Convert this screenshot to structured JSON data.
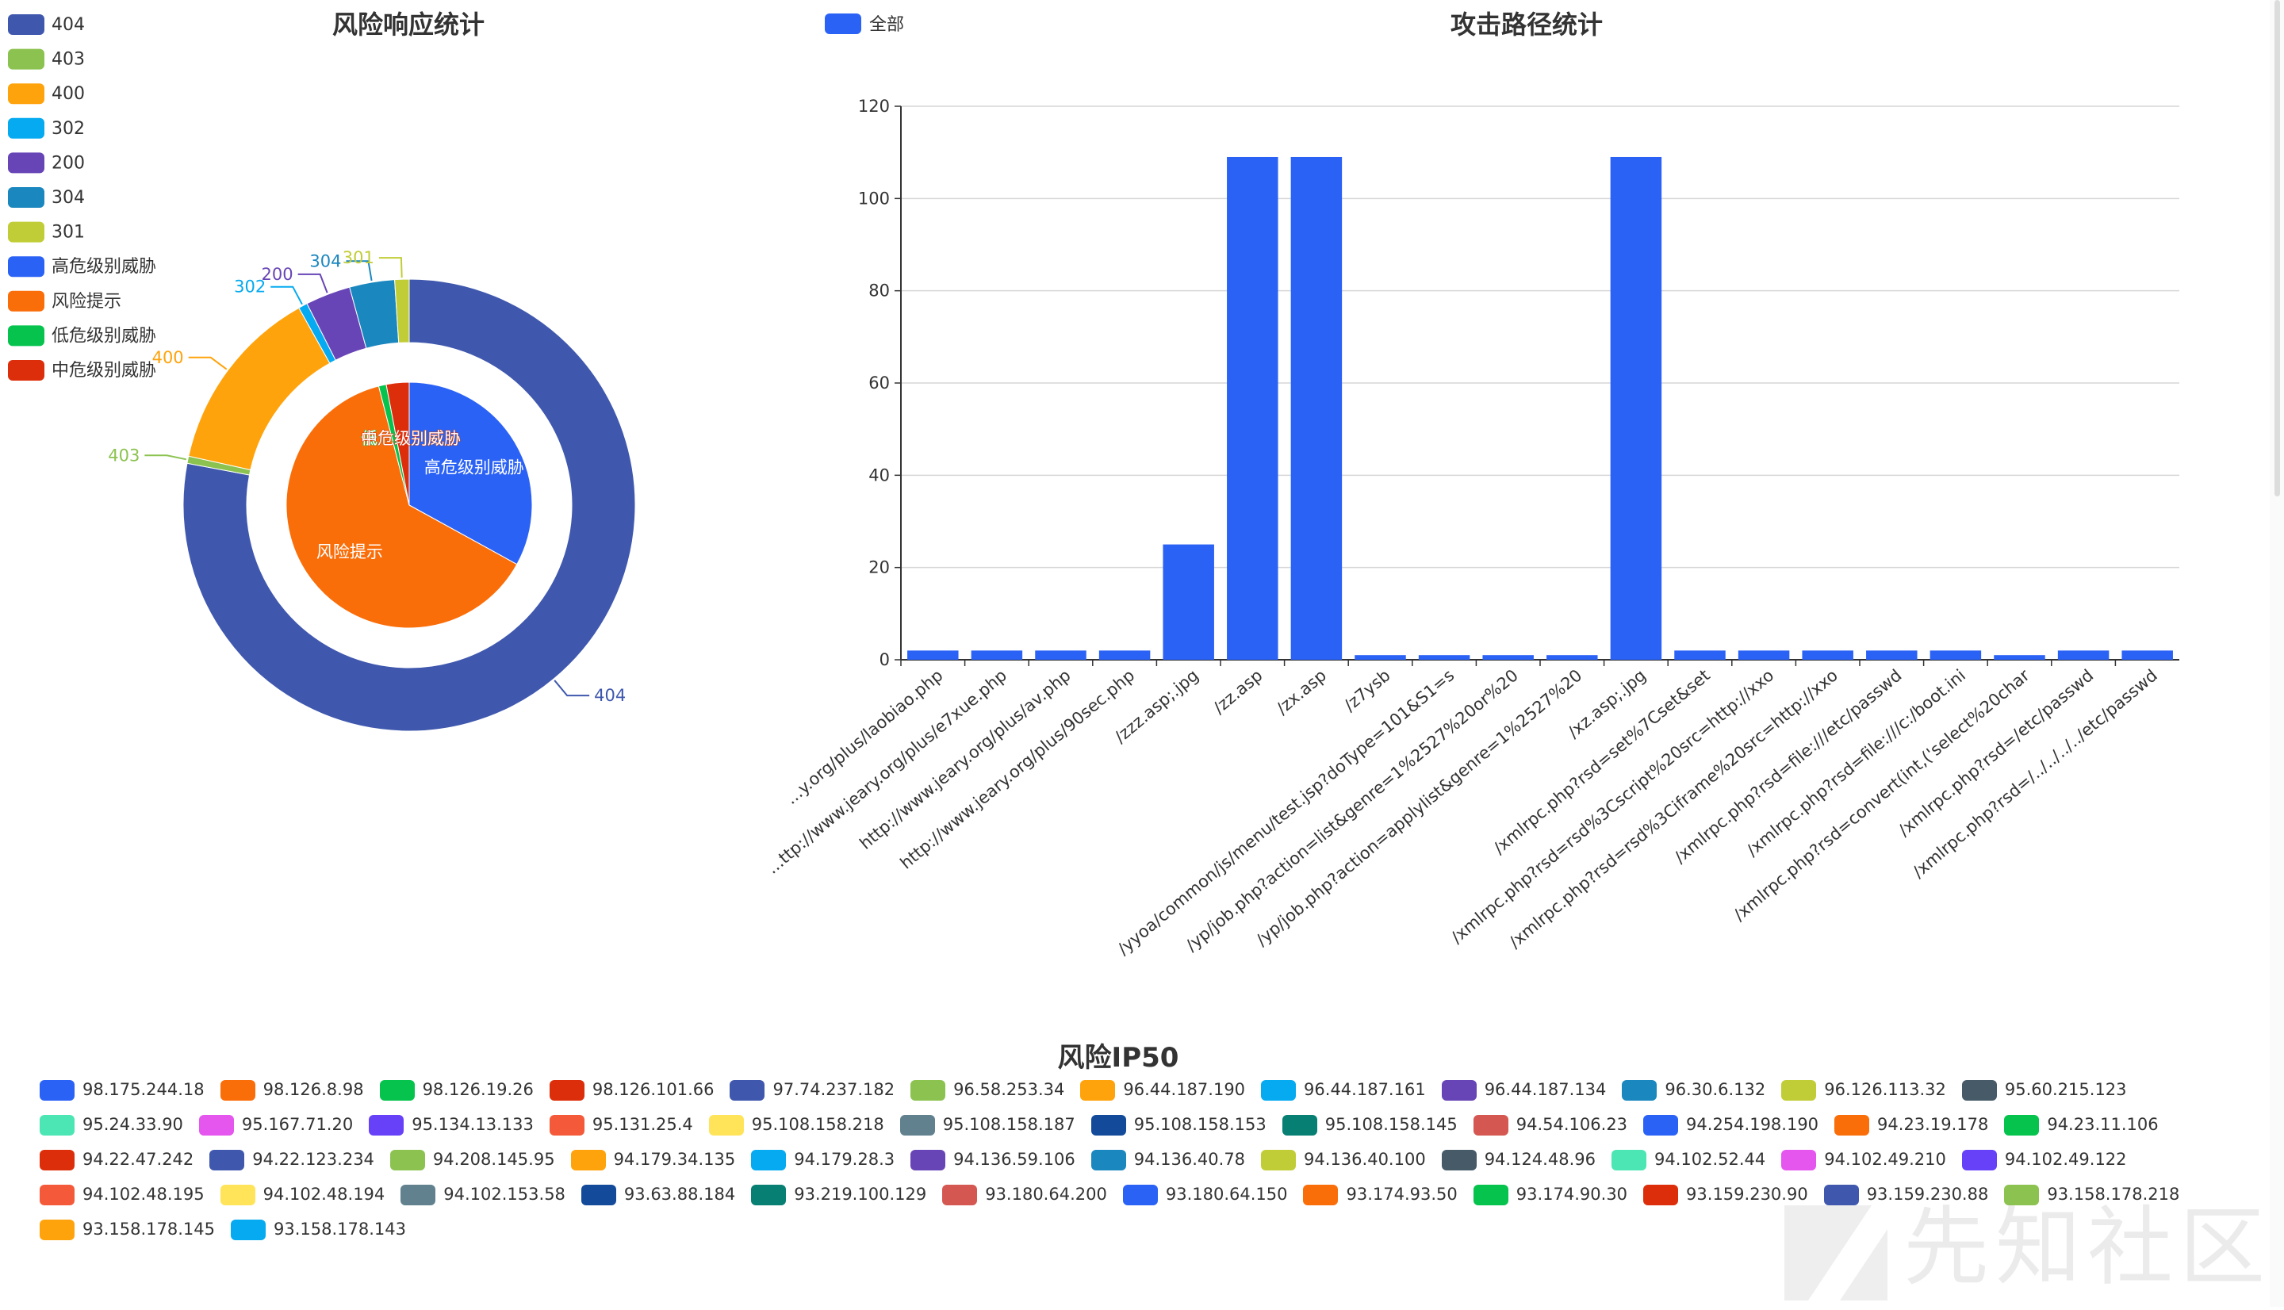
{
  "colors": {
    "palette": [
      "#2b62f6",
      "#fa6e0a",
      "#05c34d",
      "#dc2e0a",
      "#3f58ae",
      "#8cc350",
      "#ffa30c",
      "#05aaf0",
      "#6845b6",
      "#1b87bf",
      "#c1cd36",
      "#465a67",
      "#4be6b3",
      "#e456ee",
      "#6741f7",
      "#f45a3a",
      "#ffe45a",
      "#61818f",
      "#134b9a",
      "#077f72",
      "#d45752"
    ],
    "outer_ring": [
      "#3f58ae",
      "#8cc350",
      "#ffa30c",
      "#05aaf0",
      "#6845b6",
      "#1b87bf",
      "#c1cd36"
    ],
    "inner_pie": [
      "#2b62f6",
      "#fa6e0a",
      "#05c34d",
      "#dc2e0a"
    ],
    "bar": "#2b62f6",
    "text": "#333333",
    "axis": "#333333",
    "grid": "#d6d6d6"
  },
  "chart_data": [
    {
      "type": "pie",
      "title": "风险响应统计",
      "legend_position": "top-left",
      "series": [
        {
          "name": "outer-ring",
          "labels": [
            "404",
            "403",
            "400",
            "302",
            "200",
            "304",
            "301"
          ],
          "values": [
            605,
            4,
            104,
            5,
            25,
            25,
            8
          ]
        },
        {
          "name": "inner-pie",
          "labels": [
            "高危级别威胁",
            "风险提示",
            "低危级别威胁",
            "中危级别威胁"
          ],
          "values": [
            33,
            63,
            1,
            3
          ]
        }
      ]
    },
    {
      "type": "bar",
      "title": "攻击路径统计",
      "legend": [
        "全部"
      ],
      "legend_position": "top-left",
      "categories": [
        "http://www.jeary.org/plus/laobiao.php",
        "http://www.jeary.org/plus/e7xue.php",
        "http://www.jeary.org/plus/av.php",
        "http://www.jeary.org/plus/90sec.php",
        "/zzz.asp;.jpg",
        "/zz.asp",
        "/zx.asp",
        "/z7ysb",
        "/yyoa/common/js/menu/test.jsp?doType=101&S1=s",
        "/yp/job.php?action=list&genre=1%2527%20or%20",
        "/yp/job.php?action=applylist&genre=1%2527%20",
        "/xz.asp;.jpg",
        "/xmlrpc.php?rsd=set%7Cset&set",
        "/xmlrpc.php?rsd=rsd%3Cscript%20src=http://xxo",
        "/xmlrpc.php?rsd=rsd%3Ciframe%20src=http://xxo",
        "/xmlrpc.php?rsd=file:///etc/passwd",
        "/xmlrpc.php?rsd=file:///c:/boot.ini",
        "/xmlrpc.php?rsd=convert(int,('select%20char",
        "/xmlrpc.php?rsd=/etc/passwd",
        "/xmlrpc.php?rsd=/../../../../etc/passwd"
      ],
      "tick_labels": [
        "...y.org/plus/laobiao.php",
        "...ttp://www.jeary.org/plus/e7xue.php",
        "http://www.jeary.org/plus/av.php",
        "http://www.jeary.org/plus/90sec.php",
        "/zzz.asp;.jpg",
        "/zz.asp",
        "/zx.asp",
        "/z7ysb",
        "/yyoa/common/js/menu/test.jsp?doType=101&S1=s",
        "/yp/job.php?action=list&genre=1%2527%20or%20",
        "/yp/job.php?action=applylist&genre=1%2527%20",
        "/xz.asp;.jpg",
        "/xmlrpc.php?rsd=set%7Cset&set",
        "/xmlrpc.php?rsd=rsd%3Cscript%20src=http://xxo",
        "/xmlrpc.php?rsd=rsd%3Ciframe%20src=http://xxo",
        "/xmlrpc.php?rsd=file:///etc/passwd",
        "/xmlrpc.php?rsd=file:///c:/boot.ini",
        "/xmlrpc.php?rsd=convert(int,('select%20char",
        "/xmlrpc.php?rsd=/etc/passwd",
        "/xmlrpc.php?rsd=/../../../../etc/passwd"
      ],
      "series": [
        {
          "name": "全部",
          "values": [
            2,
            2,
            2,
            2,
            25,
            109,
            109,
            1,
            1,
            1,
            1,
            109,
            2,
            2,
            2,
            2,
            2,
            1,
            2,
            2
          ]
        }
      ],
      "ylim": [
        0,
        120
      ],
      "yticks": [
        0,
        20,
        40,
        60,
        80,
        100,
        120
      ],
      "grid": true
    }
  ],
  "ip_legend": {
    "title": "风险IP50",
    "items": [
      "98.175.244.18",
      "98.126.8.98",
      "98.126.19.26",
      "98.126.101.66",
      "97.74.237.182",
      "96.58.253.34",
      "96.44.187.190",
      "96.44.187.161",
      "96.44.187.134",
      "96.30.6.132",
      "96.126.113.32",
      "95.60.215.123",
      "95.24.33.90",
      "95.167.71.20",
      "95.134.13.133",
      "95.131.25.4",
      "95.108.158.218",
      "95.108.158.187",
      "95.108.158.153",
      "95.108.158.145",
      "94.54.106.23",
      "94.254.198.190",
      "94.23.19.178",
      "94.23.11.106",
      "94.22.47.242",
      "94.22.123.234",
      "94.208.145.95",
      "94.179.34.135",
      "94.179.28.3",
      "94.136.59.106",
      "94.136.40.78",
      "94.136.40.100",
      "94.124.48.96",
      "94.102.52.44",
      "94.102.49.210",
      "94.102.49.122",
      "94.102.48.195",
      "94.102.48.194",
      "94.102.153.58",
      "93.63.88.184",
      "93.219.100.129",
      "93.180.64.200",
      "93.180.64.150",
      "93.174.93.50",
      "93.174.90.30",
      "93.159.230.90",
      "93.159.230.88",
      "93.158.178.218",
      "93.158.178.145",
      "93.158.178.143"
    ]
  },
  "watermark": "先知社区"
}
